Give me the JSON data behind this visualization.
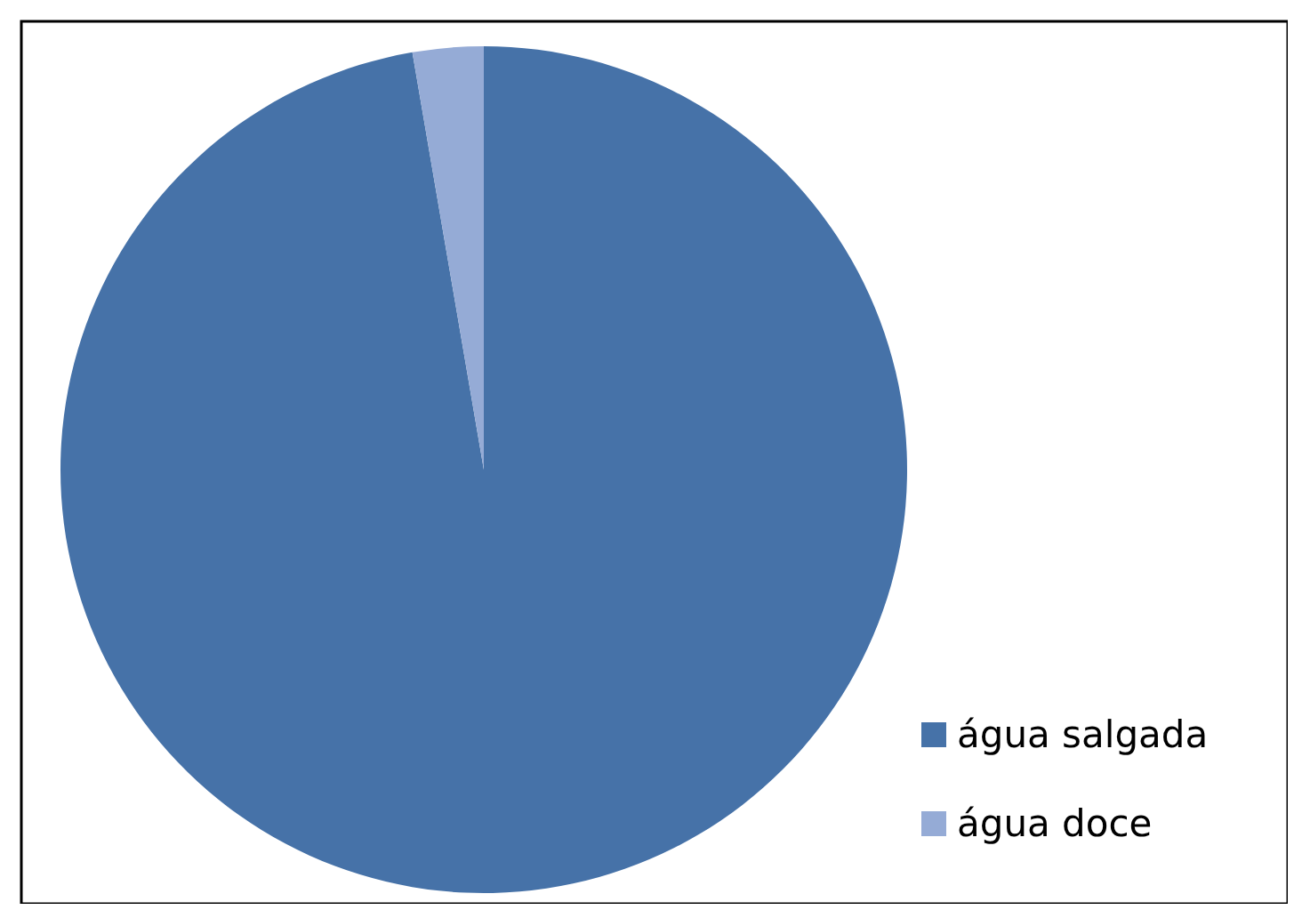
{
  "chart_data": {
    "type": "pie",
    "categories": [
      "água salgada",
      "água doce"
    ],
    "values": [
      97.3,
      2.7
    ],
    "colors": [
      "#4672a8",
      "#95abd6"
    ],
    "legend": "bottom right"
  }
}
